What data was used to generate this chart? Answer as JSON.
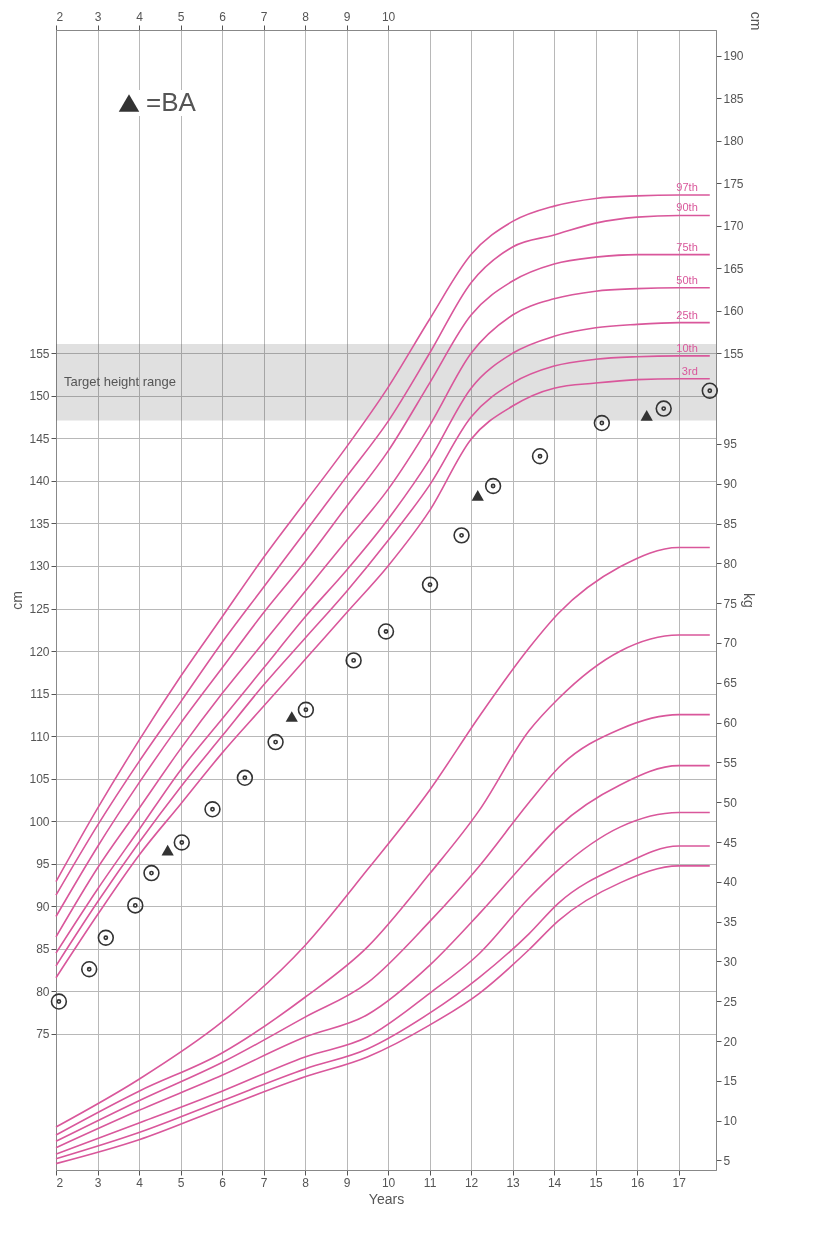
{
  "chart_data": {
    "type": "line",
    "xlabel": "Years",
    "ylabel": "cm",
    "y2label": "kg",
    "y3label": "cm",
    "xlim": [
      2,
      17.9
    ],
    "xticks": [
      2,
      3,
      4,
      5,
      6,
      7,
      8,
      9,
      10,
      11,
      12,
      13,
      14,
      15,
      16,
      17
    ],
    "x2lim": [
      2,
      17.9
    ],
    "x2ticks": [
      2,
      3,
      4,
      5,
      6,
      7,
      8,
      9,
      10
    ],
    "ylim": [
      59,
      193
    ],
    "yticks": [
      75,
      80,
      85,
      90,
      95,
      100,
      105,
      110,
      115,
      120,
      125,
      130,
      135,
      140,
      145,
      150,
      155
    ],
    "y2lim": [
      3.8,
      147
    ],
    "y2ticks": [
      5,
      10,
      15,
      20,
      25,
      30,
      35,
      40,
      45,
      50,
      55,
      60,
      65,
      70,
      75,
      80,
      85,
      90,
      95
    ],
    "y3lim": [
      59,
      193
    ],
    "y3ticks": [
      155,
      160,
      165,
      170,
      175,
      180,
      185,
      190
    ],
    "grid": true,
    "legend": "top left",
    "line_style": "solid",
    "bands": [
      {
        "axis": "y",
        "from": 147.1,
        "to": 156.1,
        "label": "Target height range",
        "color": "#555555"
      }
    ],
    "series": [
      {
        "name": "97th",
        "type": "line",
        "color": "#d9579b",
        "x": [
          2,
          3,
          4,
          5,
          6,
          7,
          8,
          9,
          10,
          11,
          12,
          13,
          14,
          15,
          16,
          17,
          17.75
        ],
        "values": [
          92.9,
          101.5,
          109.5,
          117,
          124,
          131,
          137.5,
          144,
          151,
          159,
          166.6,
          170.5,
          172.3,
          173.2,
          173.5,
          173.6,
          173.6
        ]
      },
      {
        "name": "90th",
        "type": "line",
        "color": "#d9579b",
        "x": [
          2,
          3,
          4,
          5,
          6,
          7,
          8,
          9,
          10,
          11,
          12,
          13,
          14,
          15,
          16,
          17,
          17.75
        ],
        "values": [
          91.3,
          99.5,
          107,
          114,
          121,
          127.5,
          134,
          140.5,
          147,
          155,
          163.3,
          167.5,
          168.9,
          170.3,
          171,
          171.2,
          171.2
        ]
      },
      {
        "name": "75th",
        "type": "line",
        "color": "#d9579b",
        "x": [
          2,
          3,
          4,
          5,
          6,
          7,
          8,
          9,
          10,
          11,
          12,
          13,
          14,
          15,
          16,
          17,
          17.75
        ],
        "values": [
          88.8,
          97,
          104.5,
          111.5,
          118,
          124.5,
          130.5,
          137,
          143.5,
          151.5,
          159.5,
          163.5,
          165.5,
          166.3,
          166.6,
          166.6,
          166.6
        ]
      },
      {
        "name": "50th",
        "type": "line",
        "color": "#d9579b",
        "x": [
          2,
          3,
          4,
          5,
          6,
          7,
          8,
          9,
          10,
          11,
          12,
          13,
          14,
          15,
          16,
          17,
          17.75
        ],
        "values": [
          86.4,
          94.5,
          101.5,
          108.5,
          115,
          121,
          127,
          133,
          139,
          146.5,
          155,
          159.5,
          161.4,
          162.3,
          162.6,
          162.7,
          162.7
        ]
      },
      {
        "name": "25th",
        "type": "line",
        "color": "#d9579b",
        "x": [
          2,
          3,
          4,
          5,
          6,
          7,
          8,
          9,
          10,
          11,
          12,
          13,
          14,
          15,
          16,
          17,
          17.75
        ],
        "values": [
          84.5,
          92,
          99,
          106,
          112,
          118,
          124,
          129.5,
          135.5,
          142.5,
          150.9,
          155,
          157,
          158,
          158.4,
          158.6,
          158.6
        ]
      },
      {
        "name": "10th",
        "type": "line",
        "color": "#d9579b",
        "x": [
          2,
          3,
          4,
          5,
          6,
          7,
          8,
          9,
          10,
          11,
          12,
          13,
          14,
          15,
          16,
          17,
          17.75
        ],
        "values": [
          83,
          90.5,
          97.5,
          104,
          110,
          116,
          121.5,
          127,
          133,
          139.5,
          147.5,
          151.5,
          153.5,
          154.3,
          154.6,
          154.7,
          154.7
        ]
      },
      {
        "name": "3rd",
        "type": "line",
        "color": "#d9579b",
        "x": [
          2,
          3,
          4,
          5,
          6,
          7,
          8,
          9,
          10,
          11,
          12,
          13,
          14,
          15,
          16,
          17,
          17.75
        ],
        "values": [
          81.6,
          89,
          96,
          102,
          108,
          113.5,
          119,
          124.5,
          130,
          136.5,
          144.9,
          148.8,
          150.9,
          151.5,
          151.9,
          152,
          152
        ]
      },
      {
        "type": "line",
        "axis": "y2",
        "color": "#d9579b",
        "x": [
          2,
          4,
          6,
          8,
          9.5,
          11,
          12.2,
          13.4,
          14.1,
          15.6,
          17,
          17.75
        ],
        "values": [
          9.2,
          15.2,
          22.4,
          32,
          41.5,
          51.5,
          60.8,
          69.4,
          73.7,
          79.6,
          82,
          82
        ]
      },
      {
        "type": "line",
        "axis": "y2",
        "color": "#d9579b",
        "x": [
          2,
          4,
          6,
          8,
          9.5,
          11,
          12.2,
          13.4,
          14.1,
          15.6,
          17,
          17.75
        ],
        "values": [
          8.2,
          13.7,
          18.5,
          25.5,
          31.8,
          41,
          49,
          59,
          63,
          69,
          71,
          71
        ]
      },
      {
        "type": "line",
        "axis": "y2",
        "color": "#d9579b",
        "x": [
          2,
          4,
          6,
          8,
          9.5,
          11,
          12.2,
          13.4,
          14.1,
          15.6,
          17,
          17.75
        ],
        "values": [
          7.4,
          12.5,
          17.3,
          23,
          27.3,
          35,
          42,
          50,
          54.3,
          59.2,
          61,
          61
        ]
      },
      {
        "type": "line",
        "axis": "y2",
        "color": "#d9579b",
        "x": [
          2,
          4,
          6,
          8,
          9.5,
          11,
          12.2,
          13.4,
          14.1,
          15.6,
          17,
          17.75
        ],
        "values": [
          6.6,
          11.3,
          15.7,
          20.5,
          23.3,
          29.5,
          36,
          43,
          46.9,
          52.2,
          54.6,
          54.6
        ]
      },
      {
        "type": "line",
        "axis": "y2",
        "color": "#d9579b",
        "x": [
          2,
          4,
          6,
          8,
          9.5,
          11,
          12.2,
          13.4,
          14.1,
          15.6,
          17,
          17.75
        ],
        "values": [
          5.8,
          9.7,
          13.7,
          18,
          20.5,
          26,
          31,
          38,
          41.5,
          46.9,
          48.7,
          48.7
        ]
      },
      {
        "type": "line",
        "axis": "y2",
        "color": "#d9579b",
        "x": [
          2,
          4,
          6,
          8,
          9.5,
          11,
          12.2,
          13.4,
          14.1,
          15.6,
          17,
          17.75
        ],
        "values": [
          5.2,
          8.5,
          12.5,
          16.5,
          19,
          23.5,
          28,
          33.5,
          37.3,
          42,
          44.5,
          44.5
        ]
      },
      {
        "type": "line",
        "axis": "y2",
        "color": "#d9579b",
        "x": [
          2,
          4,
          6,
          8,
          9.5,
          11,
          12.2,
          13.4,
          14.1,
          15.6,
          17,
          17.75
        ],
        "values": [
          4.6,
          7.6,
          11.6,
          15.5,
          18,
          22,
          26,
          31.5,
          35.1,
          39.9,
          42,
          42
        ]
      },
      {
        "type": "scatter",
        "marker": "circle",
        "color": "#333333",
        "x": [
          2.07,
          2.8,
          3.2,
          3.91,
          4.3,
          5.03,
          5.77,
          6.55,
          7.29,
          8.02,
          9.17,
          9.95,
          11.01,
          11.77,
          12.53,
          13.66,
          15.15,
          16.64,
          17.75
        ],
        "values": [
          78.8,
          82.6,
          86.3,
          90.1,
          93.9,
          97.5,
          101.4,
          105.1,
          109.3,
          113.1,
          118.9,
          122.3,
          127.8,
          133.6,
          139.4,
          142.9,
          146.8,
          148.5,
          150.6
        ]
      },
      {
        "name": "=BA",
        "type": "scatter",
        "marker": "triangle",
        "color": "#333333",
        "x": [
          4.69,
          7.68,
          12.16,
          16.23
        ],
        "values": [
          96.6,
          112.3,
          138.3,
          147.7
        ]
      }
    ]
  }
}
